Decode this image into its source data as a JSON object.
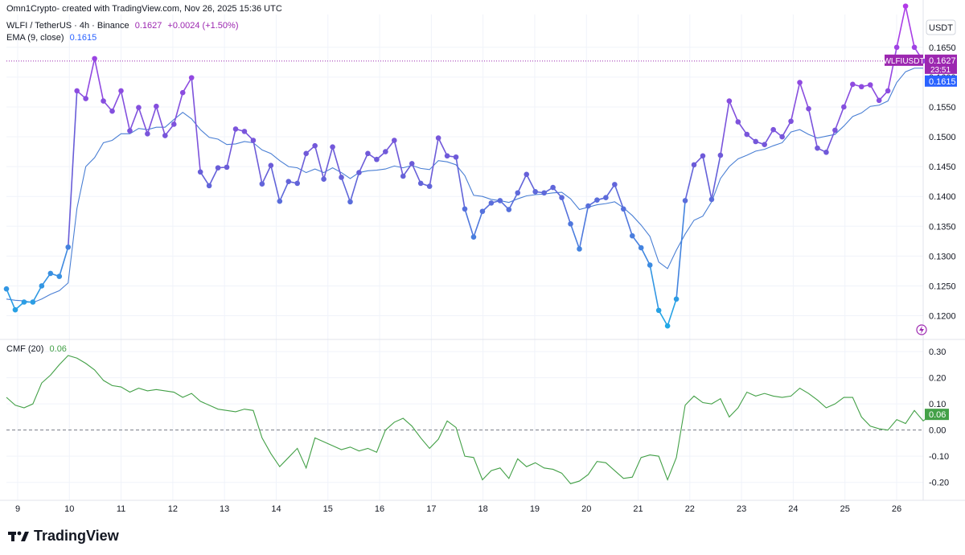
{
  "header": {
    "attribution": "Omn1Crypto- created with TradingView.com, Nov 26, 2025 15:36 UTC"
  },
  "legend": {
    "symbol": "WLFI / TetherUS · 4h · Binance",
    "last": "0.1627",
    "change": "+0.0024 (+1.50%)",
    "ema_label": "EMA (9, close)",
    "ema_value": "0.1615",
    "cmf_label": "CMF (20)",
    "cmf_value": "0.06"
  },
  "price_axis": {
    "currency": "USDT",
    "ticker_label": "WLFIUSDT",
    "last_price_label": "0.1627",
    "countdown": "23:51",
    "ema_price_label": "0.1615",
    "cmf_price_label": "0.06"
  },
  "brand": {
    "name": "TradingView"
  },
  "colors": {
    "price_low": "#1fa9e6",
    "price_mid": "#6a5cd8",
    "price_high": "#b23ae8",
    "ema": "#4a7fd4",
    "cmf": "#43a047",
    "ticker_bg": "#9c27b0",
    "ema_label_bg": "#2962ff",
    "cmf_label_bg": "#43a047"
  },
  "chart_data": [
    {
      "type": "line",
      "title": "WLFI / TetherUS · 4h · Binance",
      "x_tick_labels": [
        "9",
        "10",
        "11",
        "12",
        "13",
        "14",
        "15",
        "16",
        "17",
        "18",
        "19",
        "20",
        "21",
        "22",
        "23",
        "24",
        "25",
        "26"
      ],
      "y_tick_labels": [
        "0.1650",
        "0.1600",
        "0.1550",
        "0.1500",
        "0.1450",
        "0.1400",
        "0.1350",
        "0.1300",
        "0.1250",
        "0.1200"
      ],
      "ylim": [
        0.1163,
        0.1705
      ],
      "series": [
        {
          "name": "WLFI / TetherUS",
          "values": [
            0.1245,
            0.121,
            0.1223,
            0.1223,
            0.125,
            0.1271,
            0.1266,
            0.1315,
            0.1577,
            0.1564,
            0.1631,
            0.156,
            0.1543,
            0.1577,
            0.151,
            0.1549,
            0.1505,
            0.1551,
            0.1502,
            0.1521,
            0.1574,
            0.1599,
            0.1441,
            0.1418,
            0.1448,
            0.1449,
            0.1513,
            0.1509,
            0.1494,
            0.1421,
            0.1452,
            0.1392,
            0.1425,
            0.1422,
            0.1472,
            0.1485,
            0.1429,
            0.1483,
            0.1432,
            0.1391,
            0.144,
            0.1472,
            0.1462,
            0.1475,
            0.1494,
            0.1434,
            0.1455,
            0.1422,
            0.1417,
            0.1498,
            0.1468,
            0.1466,
            0.1379,
            0.1332,
            0.1375,
            0.1389,
            0.1393,
            0.1378,
            0.1406,
            0.1437,
            0.1408,
            0.1406,
            0.1415,
            0.1398,
            0.1354,
            0.1312,
            0.1384,
            0.1394,
            0.1398,
            0.142,
            0.1379,
            0.1334,
            0.1314,
            0.1285,
            0.1209,
            0.1183,
            0.1228,
            0.1393,
            0.1453,
            0.1468,
            0.1395,
            0.1469,
            0.156,
            0.1525,
            0.1504,
            0.1492,
            0.1487,
            0.1512,
            0.15,
            0.1526,
            0.1591,
            0.1547,
            0.1481,
            0.1474,
            0.1511,
            0.155,
            0.1588,
            0.1584,
            0.1587,
            0.1561,
            0.1577,
            0.165,
            0.1719,
            0.165,
            0.1627
          ]
        },
        {
          "name": "EMA (9, close)",
          "values": [
            0.1228,
            0.1226,
            0.1225,
            0.1222,
            0.1228,
            0.1236,
            0.1242,
            0.1255,
            0.138,
            0.145,
            0.1465,
            0.149,
            0.1494,
            0.1505,
            0.1505,
            0.1514,
            0.1512,
            0.1516,
            0.1516,
            0.1529,
            0.1541,
            0.153,
            0.1512,
            0.1499,
            0.1496,
            0.1487,
            0.1488,
            0.1492,
            0.149,
            0.1478,
            0.1472,
            0.146,
            0.145,
            0.1448,
            0.144,
            0.1446,
            0.144,
            0.1448,
            0.144,
            0.143,
            0.144,
            0.1443,
            0.1444,
            0.1446,
            0.1451,
            0.1448,
            0.1452,
            0.1447,
            0.1445,
            0.146,
            0.1458,
            0.1453,
            0.1435,
            0.1402,
            0.14,
            0.1395,
            0.1393,
            0.139,
            0.1396,
            0.1401,
            0.1403,
            0.1404,
            0.1406,
            0.1407,
            0.1396,
            0.1378,
            0.1382,
            0.1386,
            0.1388,
            0.1391,
            0.1381,
            0.1368,
            0.1352,
            0.1333,
            0.129,
            0.1279,
            0.131,
            0.1337,
            0.136,
            0.1367,
            0.1391,
            0.143,
            0.145,
            0.1463,
            0.1469,
            0.1476,
            0.1479,
            0.1485,
            0.149,
            0.1508,
            0.1512,
            0.1504,
            0.1498,
            0.1501,
            0.1504,
            0.1518,
            0.1534,
            0.154,
            0.1551,
            0.1553,
            0.156,
            0.1591,
            0.1609,
            0.1615,
            0.1615
          ]
        }
      ]
    },
    {
      "type": "line",
      "title": "CMF (20)",
      "x_tick_labels": [
        "9",
        "10",
        "11",
        "12",
        "13",
        "14",
        "15",
        "16",
        "17",
        "18",
        "19",
        "20",
        "21",
        "22",
        "23",
        "24",
        "25",
        "26"
      ],
      "y_tick_labels": [
        "0.30",
        "0.20",
        "0.10",
        "0.00",
        "-0.10",
        "-0.20"
      ],
      "ylim": [
        -0.2686,
        0.3373
      ],
      "series": [
        {
          "name": "CMF (20)",
          "values": [
            0.125,
            0.095,
            0.085,
            0.1,
            0.18,
            0.21,
            0.25,
            0.285,
            0.275,
            0.255,
            0.23,
            0.19,
            0.17,
            0.165,
            0.145,
            0.16,
            0.15,
            0.155,
            0.15,
            0.145,
            0.125,
            0.14,
            0.11,
            0.095,
            0.08,
            0.075,
            0.07,
            0.08,
            0.075,
            -0.03,
            -0.09,
            -0.14,
            -0.105,
            -0.07,
            -0.145,
            -0.03,
            -0.045,
            -0.06,
            -0.075,
            -0.065,
            -0.08,
            -0.07,
            -0.085,
            0.0,
            0.03,
            0.045,
            0.015,
            -0.03,
            -0.07,
            -0.035,
            0.035,
            0.01,
            -0.1,
            -0.105,
            -0.19,
            -0.155,
            -0.145,
            -0.185,
            -0.11,
            -0.14,
            -0.125,
            -0.145,
            -0.15,
            -0.165,
            -0.205,
            -0.195,
            -0.17,
            -0.12,
            -0.125,
            -0.155,
            -0.185,
            -0.18,
            -0.105,
            -0.095,
            -0.1,
            -0.19,
            -0.105,
            0.095,
            0.13,
            0.105,
            0.1,
            0.12,
            0.05,
            0.085,
            0.145,
            0.13,
            0.14,
            0.13,
            0.125,
            0.13,
            0.16,
            0.14,
            0.115,
            0.085,
            0.1,
            0.125,
            0.125,
            0.05,
            0.015,
            0.005,
            0.0,
            0.04,
            0.025,
            0.075,
            0.035,
            0.06
          ]
        }
      ]
    }
  ]
}
